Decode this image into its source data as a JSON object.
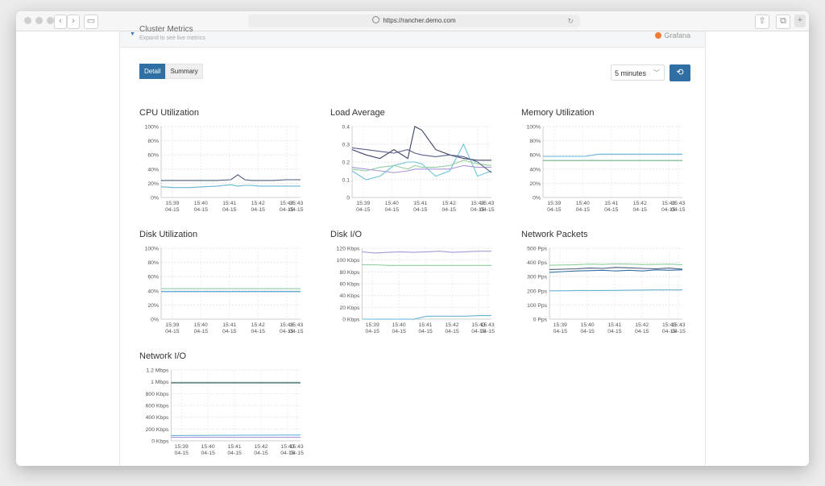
{
  "browser": {
    "url": "https://rancher.demo.com"
  },
  "section": {
    "title": "Cluster Metrics",
    "subtitle": "Expand to see live metrics",
    "provider": "Grafana"
  },
  "tabs": [
    {
      "label": "Detail",
      "active": true
    },
    {
      "label": "Summary",
      "active": false
    }
  ],
  "time_range": "5 minutes",
  "colors": {
    "accent": "#2f6fa3"
  },
  "chart_data": [
    {
      "type": "line",
      "title": "CPU Utilization",
      "yticks": [
        "100%",
        "80%",
        "60%",
        "40%",
        "20%",
        "0%"
      ],
      "ylim": [
        0,
        100
      ],
      "xticks": [
        "15:39",
        "15:40",
        "15:41",
        "15:42",
        "15:43",
        "15:43"
      ],
      "xdates": [
        "04-15",
        "04-15",
        "04-15",
        "04-15",
        "04-15",
        "04-15"
      ],
      "x": [
        0,
        0.1,
        0.2,
        0.3,
        0.4,
        0.5,
        0.55,
        0.6,
        0.65,
        0.7,
        0.8,
        0.9,
        1
      ],
      "series": [
        {
          "color": "#4c5a7a",
          "values": [
            24,
            24,
            24,
            24,
            24,
            25,
            32,
            25,
            24,
            24,
            24,
            25,
            25
          ]
        },
        {
          "color": "#64b4d8",
          "values": [
            15,
            14,
            14,
            15,
            16,
            18,
            16,
            17,
            17,
            16,
            16,
            16,
            16
          ]
        }
      ]
    },
    {
      "type": "line",
      "title": "Load Average",
      "yticks": [
        "0.4",
        "0.3",
        "0.2",
        "0.1",
        "0"
      ],
      "ylim": [
        0,
        0.4
      ],
      "xticks": [
        "15:39",
        "15:40",
        "15:41",
        "15:42",
        "15:43",
        "15:43"
      ],
      "xdates": [
        "04-15",
        "04-15",
        "04-15",
        "04-15",
        "04-15",
        "04-15"
      ],
      "x": [
        0,
        0.1,
        0.2,
        0.3,
        0.4,
        0.45,
        0.5,
        0.6,
        0.7,
        0.8,
        0.9,
        1
      ],
      "series": [
        {
          "color": "#3d4463",
          "values": [
            0.27,
            0.24,
            0.22,
            0.27,
            0.22,
            0.4,
            0.38,
            0.27,
            0.24,
            0.22,
            0.21,
            0.21
          ]
        },
        {
          "color": "#6cc3dc",
          "values": [
            0.15,
            0.1,
            0.12,
            0.18,
            0.2,
            0.2,
            0.19,
            0.12,
            0.15,
            0.3,
            0.12,
            0.15
          ]
        },
        {
          "color": "#8fcf9e",
          "values": [
            0.16,
            0.15,
            0.17,
            0.18,
            0.16,
            0.18,
            0.17,
            0.17,
            0.18,
            0.21,
            0.19,
            0.18
          ]
        },
        {
          "color": "#a998d8",
          "values": [
            0.17,
            0.16,
            0.15,
            0.14,
            0.15,
            0.16,
            0.16,
            0.16,
            0.16,
            0.18,
            0.17,
            0.17
          ]
        },
        {
          "color": "#5a5f8c",
          "values": [
            0.28,
            0.27,
            0.26,
            0.25,
            0.27,
            0.25,
            0.24,
            0.23,
            0.24,
            0.23,
            0.2,
            0.14
          ]
        }
      ]
    },
    {
      "type": "line",
      "title": "Memory Utilization",
      "yticks": [
        "100%",
        "80%",
        "60%",
        "40%",
        "20%",
        "0%"
      ],
      "ylim": [
        0,
        100
      ],
      "xticks": [
        "15:39",
        "15:40",
        "15:41",
        "15:42",
        "15:43",
        "15:43"
      ],
      "xdates": [
        "04-15",
        "04-15",
        "04-15",
        "04-15",
        "04-15",
        "04-15"
      ],
      "x": [
        0,
        0.3,
        0.4,
        1
      ],
      "series": [
        {
          "color": "#64b4d8",
          "values": [
            58,
            58,
            61,
            61
          ]
        },
        {
          "color": "#4c5a7a",
          "values": [
            52,
            52,
            52,
            52
          ]
        },
        {
          "color": "#8fcf9e",
          "values": [
            52,
            52,
            52,
            52
          ]
        }
      ]
    },
    {
      "type": "line",
      "title": "Disk Utilization",
      "yticks": [
        "100%",
        "80%",
        "60%",
        "40%",
        "20%",
        "0%"
      ],
      "ylim": [
        0,
        100
      ],
      "xticks": [
        "15:39",
        "15:40",
        "15:41",
        "15:42",
        "15:43",
        "15:43"
      ],
      "xdates": [
        "04-15",
        "04-15",
        "04-15",
        "04-15",
        "04-15",
        "04-15"
      ],
      "x": [
        0,
        1
      ],
      "series": [
        {
          "color": "#8fcf9e",
          "values": [
            43,
            43
          ]
        },
        {
          "color": "#4c5a7a",
          "values": [
            39,
            39
          ]
        },
        {
          "color": "#64b4d8",
          "values": [
            39,
            39
          ]
        }
      ]
    },
    {
      "type": "line",
      "title": "Disk I/O",
      "yticks": [
        "120 Kbps",
        "100 Kbps",
        "80 Kbps",
        "60 Kbps",
        "40 Kbps",
        "20 Kbps",
        "0 Kbps"
      ],
      "ylim": [
        0,
        120
      ],
      "xticks": [
        "15:39",
        "15:40",
        "15:41",
        "15:42",
        "15:43",
        "15:43"
      ],
      "xdates": [
        "04-15",
        "04-15",
        "04-15",
        "04-15",
        "04-15",
        "04-15"
      ],
      "x": [
        0,
        0.1,
        0.2,
        0.3,
        0.4,
        0.5,
        0.6,
        0.7,
        0.8,
        0.9,
        1
      ],
      "series": [
        {
          "color": "#a998d8",
          "values": [
            114,
            112,
            113,
            114,
            113,
            114,
            115,
            113,
            114,
            115,
            115
          ]
        },
        {
          "color": "#8fcf9e",
          "values": [
            92,
            92,
            91,
            91,
            91,
            91,
            91,
            91,
            91,
            91,
            91
          ]
        },
        {
          "color": "#64b4d8",
          "values": [
            0,
            0,
            0,
            0,
            0,
            5,
            5,
            5,
            5,
            6,
            6
          ]
        }
      ]
    },
    {
      "type": "line",
      "title": "Network Packets",
      "yticks": [
        "500 Pps",
        "400 Pps",
        "300 Pps",
        "200 Pps",
        "100 Pps",
        "0 Pps"
      ],
      "ylim": [
        0,
        500
      ],
      "xticks": [
        "15:39",
        "15:40",
        "15:41",
        "15:42",
        "15:43",
        "15:43"
      ],
      "xdates": [
        "04-15",
        "04-15",
        "04-15",
        "04-15",
        "04-15",
        "04-15"
      ],
      "x": [
        0,
        0.1,
        0.2,
        0.3,
        0.4,
        0.5,
        0.6,
        0.7,
        0.8,
        0.9,
        1
      ],
      "series": [
        {
          "color": "#4c5a7a",
          "values": [
            350,
            352,
            355,
            360,
            358,
            365,
            362,
            358,
            355,
            360,
            352
          ]
        },
        {
          "color": "#8fcf9e",
          "values": [
            380,
            382,
            384,
            388,
            386,
            390,
            388,
            385,
            386,
            388,
            384
          ]
        },
        {
          "color": "#64b4d8",
          "values": [
            200,
            200,
            202,
            202,
            202,
            203,
            204,
            205,
            206,
            206,
            206
          ]
        },
        {
          "color": "#2f6fa3",
          "values": [
            330,
            335,
            340,
            342,
            345,
            340,
            345,
            340,
            348,
            345,
            348
          ]
        }
      ]
    },
    {
      "type": "line",
      "title": "Network I/O",
      "yticks": [
        "1.2 Mbps",
        "1 Mbps",
        "800 Kbps",
        "600 Kbps",
        "400 Kbps",
        "200 Kbps",
        "0 Kbps"
      ],
      "ylim": [
        0,
        1200
      ],
      "xticks": [
        "15:39",
        "15:40",
        "15:41",
        "15:42",
        "15:43",
        "15:43"
      ],
      "xdates": [
        "04-15",
        "04-15",
        "04-15",
        "04-15",
        "04-15",
        "04-15"
      ],
      "x": [
        0,
        1
      ],
      "series": [
        {
          "color": "#8fcf9e",
          "values": [
            990,
            990
          ]
        },
        {
          "color": "#4c5a7a",
          "values": [
            980,
            980
          ]
        },
        {
          "color": "#64b4d8",
          "values": [
            90,
            100
          ]
        },
        {
          "color": "#a998d8",
          "values": [
            60,
            60
          ]
        }
      ]
    }
  ]
}
